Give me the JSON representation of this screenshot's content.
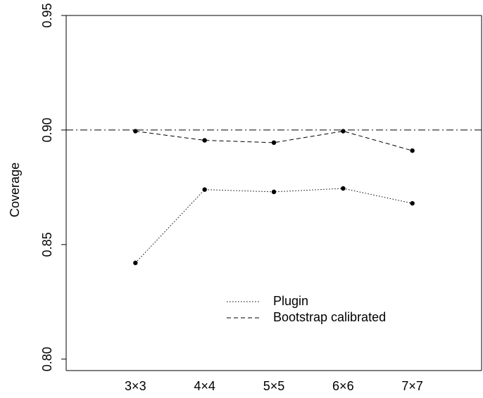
{
  "chart_data": {
    "type": "line",
    "title": "",
    "xlabel": "",
    "ylabel": "Coverage",
    "categories": [
      "3×3",
      "4×4",
      "5×5",
      "6×6",
      "7×7"
    ],
    "x_index_range": [
      0,
      6
    ],
    "ylim": [
      0.795,
      0.95
    ],
    "yticks": [
      {
        "value": 0.8,
        "label": "0.80"
      },
      {
        "value": 0.85,
        "label": "0.85"
      },
      {
        "value": 0.9,
        "label": "0.90"
      },
      {
        "value": 0.95,
        "label": "0.95"
      }
    ],
    "reference_line": {
      "value": 0.9,
      "style": "dash-dot"
    },
    "series": [
      {
        "name": "Plugin",
        "style": "dotted",
        "values": [
          0.842,
          0.874,
          0.873,
          0.8745,
          0.868
        ]
      },
      {
        "name": "Bootstrap calibrated",
        "style": "dashed",
        "values": [
          0.8995,
          0.8955,
          0.8945,
          0.8995,
          0.891
        ]
      }
    ],
    "legend_position": "bottom-center",
    "grid": false,
    "colors": {
      "line": "#000000",
      "background": "#ffffff"
    }
  }
}
